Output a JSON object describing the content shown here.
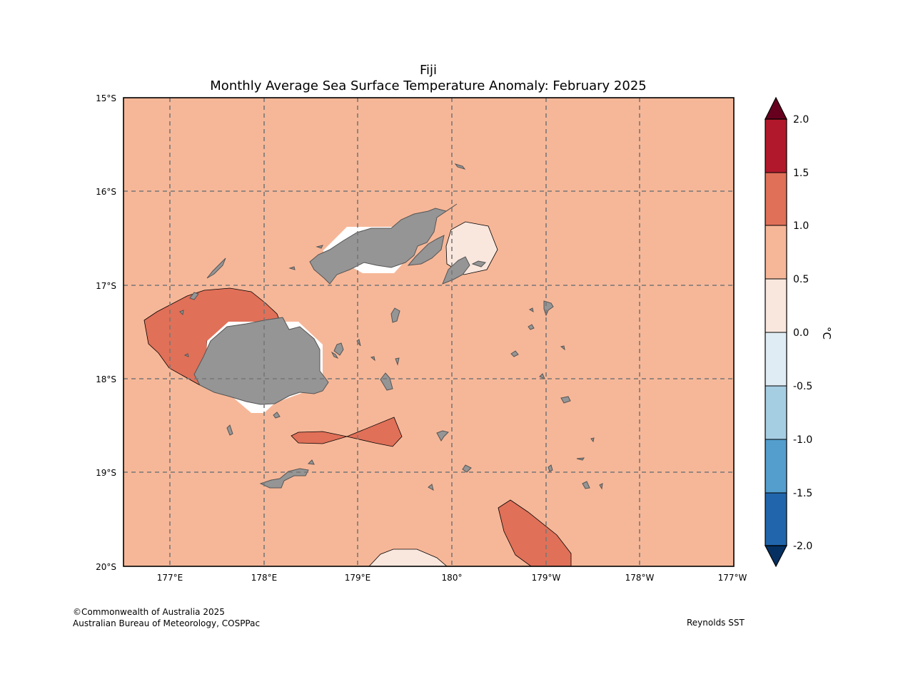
{
  "map": {
    "title": "Fiji",
    "subtitle": "Monthly Average Sea Surface Temperature Anomaly: February 2025",
    "lat_labels": [
      "15°S",
      "16°S",
      "17°S",
      "18°S",
      "19°S",
      "20°S"
    ],
    "lon_labels": [
      "177°E",
      "178°E",
      "179°E",
      "180°",
      "179°W",
      "178°W",
      "177°W"
    ],
    "background_color": "#f6b798",
    "land_color": "#959595"
  },
  "colorbar": {
    "unit": "°C",
    "tick_labels": [
      "2.0",
      "1.5",
      "1.0",
      "0.5",
      "0.0",
      "-0.5",
      "-1.0",
      "-1.5",
      "-2.0"
    ],
    "colors": [
      "#67001f",
      "#b2182b",
      "#e07058",
      "#f6b798",
      "#f9e6dd",
      "#e0ecf4",
      "#a6cee3",
      "#539ecd",
      "#2166ac",
      "#053061"
    ]
  },
  "footer": {
    "copyright": "©Commonwealth of Australia 2025",
    "agency": "Australian Bureau of Meteorology, COSPPac",
    "source": "Reynolds SST"
  }
}
